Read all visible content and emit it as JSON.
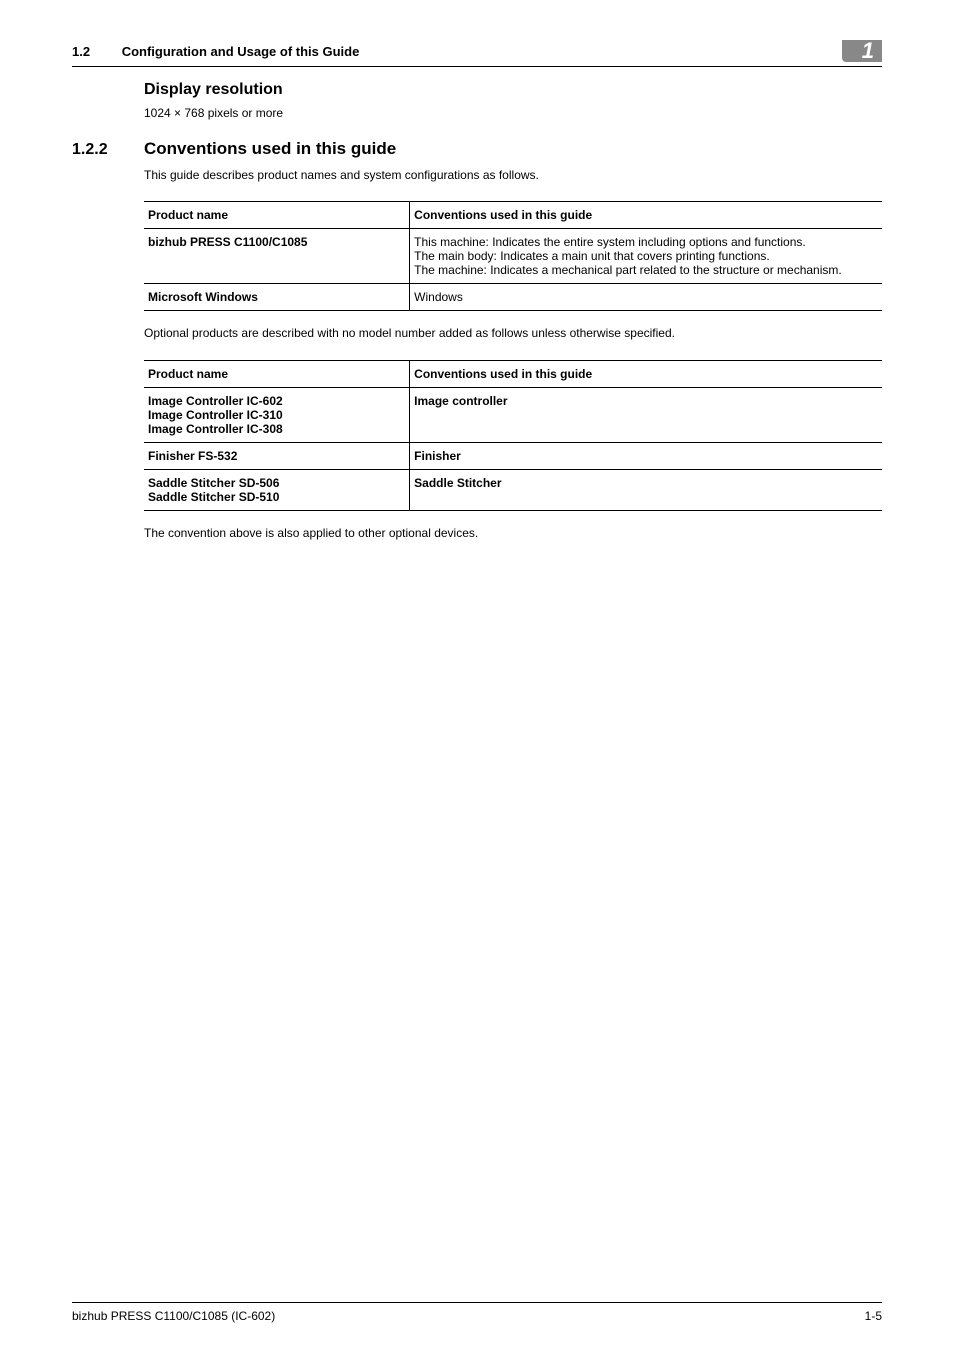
{
  "header": {
    "section_num": "1.2",
    "title": "Configuration and Usage of this Guide",
    "chapter_tab": "1"
  },
  "display_resolution": {
    "heading": "Display resolution",
    "text": "1024 × 768 pixels or more"
  },
  "section_122": {
    "num": "1.2.2",
    "title": "Conventions used in this guide",
    "intro": "This guide describes product names and system configurations as follows."
  },
  "table1": {
    "head_left": "Product name",
    "head_right": "Conventions used in this guide",
    "rows": [
      {
        "left": "bizhub PRESS C1100/C1085",
        "right": "This machine: Indicates the entire system including options and functions.\nThe main body: Indicates a main unit that covers printing functions.\nThe machine: Indicates a mechanical part related to the structure or mechanism."
      },
      {
        "left": "Microsoft Windows",
        "right": "Windows"
      }
    ]
  },
  "optional_intro": "Optional products are described with no model number added as follows unless otherwise specified.",
  "table2": {
    "head_left": "Product name",
    "head_right": "Conventions used in this guide",
    "rows": [
      {
        "left": "Image Controller IC-602\nImage Controller IC-310\nImage Controller IC-308",
        "right": "Image controller",
        "right_bold": true
      },
      {
        "left": "Finisher FS-532",
        "right": "Finisher",
        "right_bold": true
      },
      {
        "left": "Saddle Stitcher SD-506\nSaddle Stitcher SD-510",
        "right": "Saddle Stitcher",
        "right_bold": true
      }
    ]
  },
  "closing": "The convention above is also applied to other optional devices.",
  "footer": {
    "left": "bizhub PRESS C1100/C1085 (IC-602)",
    "right": "1-5"
  }
}
